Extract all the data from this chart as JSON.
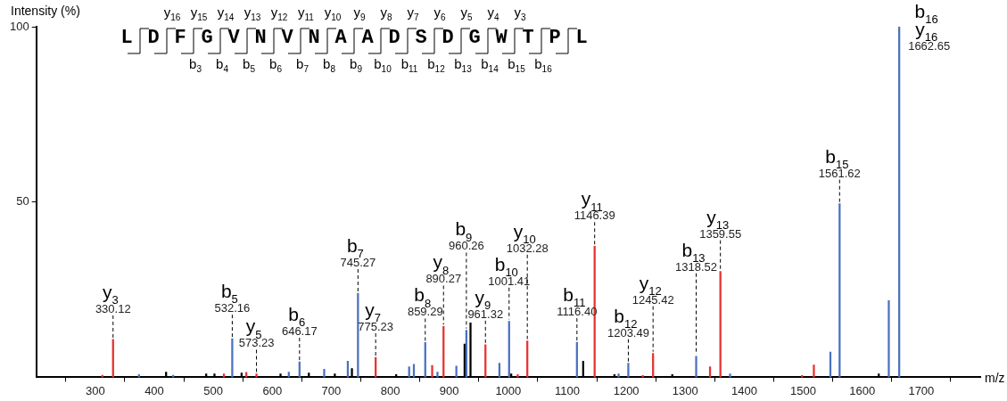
{
  "chart_data": {
    "type": "bar",
    "xlabel": "m/z",
    "ylabel": "Intensity (%)",
    "xlim": [
      200,
      1800
    ],
    "xticks": [
      300,
      400,
      500,
      600,
      700,
      800,
      900,
      1000,
      1100,
      1200,
      1300,
      1400,
      1500,
      1600,
      1700
    ],
    "ylim": [
      0,
      100
    ],
    "yticks": [
      50,
      100
    ],
    "series": [
      {
        "color": "#4a72c0",
        "x": [
          374,
          432,
          532.16,
          628,
          646.17,
          688,
          728,
          745.27,
          832,
          840,
          859.29,
          880,
          912,
          929,
          985,
          1001.41,
          1116.4,
          1187,
          1203.49,
          1318.52,
          1376,
          1546,
          1561.62,
          1645,
          1662.65
        ],
        "values": [
          0.8,
          0.6,
          11,
          1.5,
          4.4,
          2.3,
          4.6,
          24,
          3,
          3.7,
          9.9,
          1.5,
          3.2,
          13.4,
          4,
          16,
          10,
          1,
          4,
          6,
          1,
          7.2,
          49.5,
          21.9,
          100
        ]
      },
      {
        "color": "#e8312f",
        "x": [
          312,
          330.12,
          518,
          556,
          573.23,
          775.23,
          871,
          890.27,
          961.32,
          1016,
          1032.28,
          1146.39,
          1228,
          1245.42,
          1342,
          1359.55,
          1498,
          1518
        ],
        "values": [
          0.6,
          10.8,
          1,
          1.4,
          1,
          5.7,
          3.4,
          14.5,
          9.3,
          0.8,
          10.4,
          37.4,
          0.5,
          6.8,
          3,
          30.2,
          0.5,
          3.5
        ]
      },
      {
        "color": "#000000",
        "x": [
          420,
          488,
          502,
          548,
          614,
          662,
          706,
          735,
          810,
          926,
          936,
          1005,
          1127,
          1180,
          1278,
          1628
        ],
        "values": [
          1.5,
          1,
          1,
          1.2,
          1,
          1.2,
          1,
          2.5,
          0.8,
          9.5,
          15.5,
          1,
          4.6,
          0.8,
          0.8,
          1
        ]
      }
    ],
    "annotations": [
      "LDFGVNVNAADSDGWTPL",
      "y$_{16}$",
      "y$_{15}$",
      "y$_{14}$",
      "y$_{13}$",
      "y$_{12}$",
      "y$_{11}$",
      "y$_{10}$",
      "y$_{9}$",
      "y$_{8}$",
      "y$_{7}$",
      "y$_{6}$",
      "y$_{5}$",
      "y$_{4}$",
      "y$_{3}$",
      "b$_{3}$",
      "b$_{4}$",
      "b$_{5}$",
      "b$_{6}$",
      "b$_{7}$",
      "b$_{8}$",
      "b$_{9}$",
      "b$_{10}$",
      "b$_{11}$",
      "b$_{12}$",
      "b$_{13}$",
      "b$_{14}$",
      "b$_{15}$",
      "b$_{16}$",
      {
        "text": "y$_{3}$",
        "x": 330.12,
        "y": 10.8
      },
      {
        "text": "330.12",
        "x": 330.12,
        "y": 10.8
      },
      {
        "text": "b$_{5}$",
        "x": 532.16,
        "y": 11
      },
      {
        "text": "532.16",
        "x": 532.16,
        "y": 11
      },
      {
        "text": "y$_{5}$",
        "x": 573.23,
        "y": 1
      },
      {
        "text": "573.23",
        "x": 573.23,
        "y": 1
      },
      {
        "text": "b$_{6}$",
        "x": 646.17,
        "y": 4.4
      },
      {
        "text": "646.17",
        "x": 646.17,
        "y": 4.4
      },
      {
        "text": "b$_{7}$",
        "x": 745.27,
        "y": 24
      },
      {
        "text": "745.27",
        "x": 745.27,
        "y": 24
      },
      {
        "text": "y$_{7}$",
        "x": 775.23,
        "y": 5.7
      },
      {
        "text": "775.23",
        "x": 775.23,
        "y": 5.7
      },
      {
        "text": "b$_{8}$",
        "x": 859.29,
        "y": 9.9
      },
      {
        "text": "859.29",
        "x": 859.29,
        "y": 9.9
      },
      {
        "text": "y$_{8}$",
        "x": 890.27,
        "y": 14.5
      },
      {
        "text": "890.27",
        "x": 890.27,
        "y": 14.5
      },
      {
        "text": "b$_{9}$",
        "x": 929,
        "y": 13.4
      },
      {
        "text": "960.26",
        "x": 929,
        "y": 13.4
      },
      {
        "text": "y$_{9}$",
        "x": 961.32,
        "y": 9.3
      },
      {
        "text": "961.32",
        "x": 961.32,
        "y": 9.3
      },
      {
        "text": "b$_{10}$",
        "x": 1001.41,
        "y": 16
      },
      {
        "text": "1001.41",
        "x": 1001.41,
        "y": 16
      },
      {
        "text": "y$_{10}$",
        "x": 1032.28,
        "y": 10.4
      },
      {
        "text": "1032.28",
        "x": 1032.28,
        "y": 10.4
      },
      {
        "text": "b$_{11}$",
        "x": 1116.4,
        "y": 10
      },
      {
        "text": "1116.40",
        "x": 1116.4,
        "y": 10
      },
      {
        "text": "y$_{11}$",
        "x": 1146.39,
        "y": 37.4
      },
      {
        "text": "1146.39",
        "x": 1146.39,
        "y": 37.4
      },
      {
        "text": "b$_{12}$",
        "x": 1203.49,
        "y": 4
      },
      {
        "text": "1203.49",
        "x": 1203.49,
        "y": 4
      },
      {
        "text": "y$_{12}$",
        "x": 1245.42,
        "y": 6.8
      },
      {
        "text": "1245.42",
        "x": 1245.42,
        "y": 6.8
      },
      {
        "text": "b$_{13}$",
        "x": 1318.52,
        "y": 6
      },
      {
        "text": "1318.52",
        "x": 1318.52,
        "y": 6
      },
      {
        "text": "y$_{13}$",
        "x": 1359.55,
        "y": 30.2
      },
      {
        "text": "1359.55",
        "x": 1359.55,
        "y": 30.2
      },
      {
        "text": "b$_{15}$",
        "x": 1561.62,
        "y": 49.5
      },
      {
        "text": "1561.62",
        "x": 1561.62,
        "y": 49.5
      },
      {
        "text": "b$_{16}$",
        "x": 1662.65,
        "y": 100
      },
      {
        "text": "y$_{16}$",
        "x": 1662.65,
        "y": 100
      },
      {
        "text": "1662.65",
        "x": 1662.65,
        "y": 100
      }
    ]
  }
}
